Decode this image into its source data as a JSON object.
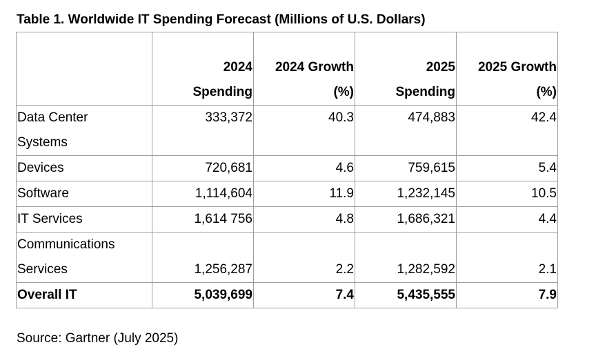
{
  "title": "Table 1. Worldwide IT Spending Forecast (Millions of U.S. Dollars)",
  "table": {
    "headers": [
      {
        "line1": "2024",
        "line2": "Spending"
      },
      {
        "line1": "2024 Growth",
        "line2": "(%)"
      },
      {
        "line1": "2025",
        "line2": "Spending"
      },
      {
        "line1": "2025 Growth",
        "line2": "(%)"
      }
    ],
    "rows": [
      {
        "label1": "Data Center",
        "label2": "Systems",
        "spend_2024": "333,372",
        "growth_2024": "40.3",
        "spend_2025": "474,883",
        "growth_2025": "42.4"
      },
      {
        "label1": "Devices",
        "label2": "",
        "spend_2024": "720,681",
        "growth_2024": "4.6",
        "spend_2025": "759,615",
        "growth_2025": "5.4"
      },
      {
        "label1": "Software",
        "label2": "",
        "spend_2024": "1,114,604",
        "growth_2024": "11.9",
        "spend_2025": "1,232,145",
        "growth_2025": "10.5"
      },
      {
        "label1": "IT Services",
        "label2": "",
        "spend_2024": "1,614 756",
        "growth_2024": "4.8",
        "spend_2025": "1,686,321",
        "growth_2025": "4.4"
      },
      {
        "label1": "Communications",
        "label2": "Services",
        "spend_2024": "1,256,287",
        "growth_2024": "2.2",
        "spend_2025": "1,282,592",
        "growth_2025": "2.1"
      }
    ],
    "total": {
      "label": "Overall IT",
      "spend_2024": "5,039,699",
      "growth_2024": "7.4",
      "spend_2025": "5,435,555",
      "growth_2025": "7.9"
    }
  },
  "source": "Source: Gartner (July 2025)"
}
